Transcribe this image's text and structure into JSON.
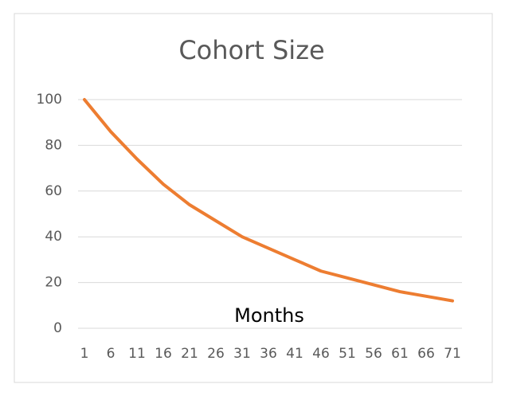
{
  "chart_data": {
    "type": "line",
    "title": "Cohort Size",
    "x_label": "Months",
    "x": [
      1,
      6,
      11,
      16,
      21,
      26,
      31,
      36,
      41,
      46,
      51,
      56,
      61,
      66,
      71
    ],
    "series": [
      {
        "color": "#ed7d31",
        "values": [
          100,
          86,
          74,
          63,
          54,
          47,
          40,
          35,
          30,
          25,
          22,
          19,
          16,
          14,
          12
        ]
      }
    ],
    "xlim": [
      1,
      71
    ],
    "xticks": [
      1,
      6,
      11,
      16,
      21,
      26,
      31,
      36,
      41,
      46,
      51,
      56,
      61,
      66,
      71
    ],
    "ylim": [
      0,
      100
    ],
    "yticks": [
      0,
      20,
      40,
      60,
      80,
      100
    ],
    "grid": true
  }
}
